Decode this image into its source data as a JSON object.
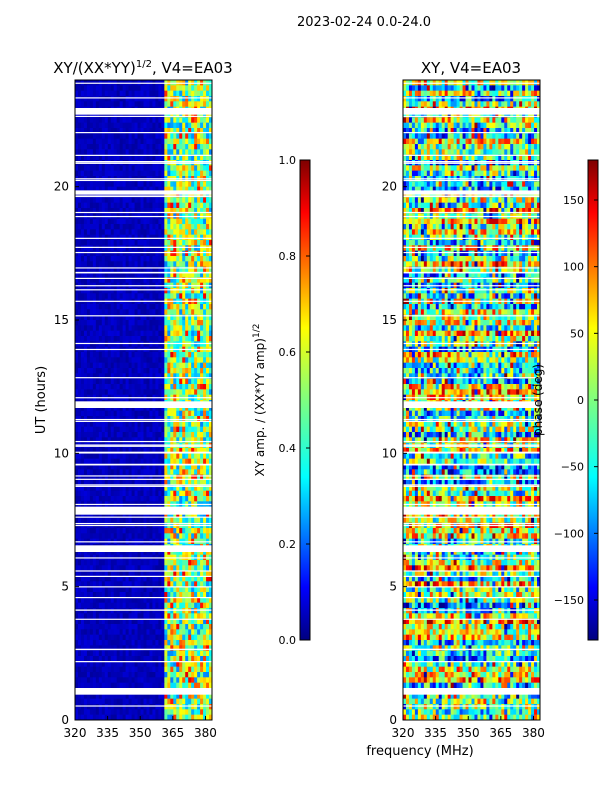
{
  "figure": {
    "suptitle": "2023-02-24 0.0-24.0",
    "xlabel_shared": "frequency (MHz)"
  },
  "chart_data": [
    {
      "type": "heatmap",
      "name": "amplitude-ratio",
      "title_main": "XY/(XX*YY)",
      "title_exp": "1/2",
      "title_tail": ", V4=EA03",
      "xlabel": "",
      "ylabel": "UT (hours)",
      "xlim": [
        320,
        383
      ],
      "ylim": [
        0,
        24
      ],
      "xticks": [
        320,
        335,
        350,
        365,
        380
      ],
      "yticks": [
        0,
        5,
        10,
        15,
        20
      ],
      "colorbar": {
        "label_main": "XY amp. / (XX*YY amp)",
        "label_exp": "1/2",
        "range": [
          0.0,
          1.0
        ],
        "ticks": [
          "0.0",
          "0.2",
          "0.4",
          "0.6",
          "0.8",
          "1.0"
        ]
      },
      "colormap": [
        "#00007f",
        "#0000ff",
        "#007fff",
        "#00ffff",
        "#7fff7f",
        "#ffff00",
        "#ff7f00",
        "#ff0000",
        "#7f0000"
      ]
    },
    {
      "type": "heatmap",
      "name": "phase",
      "title_main": "XY, V4=EA03",
      "xlabel": "frequency (MHz)",
      "ylabel": "",
      "xlim": [
        320,
        383
      ],
      "ylim": [
        0,
        24
      ],
      "xticks": [
        320,
        335,
        350,
        365,
        380
      ],
      "yticks": [
        0,
        5,
        10,
        15,
        20
      ],
      "colorbar": {
        "label_main": "phase (deg)",
        "range": [
          -180,
          180
        ],
        "ticks": [
          "−150",
          "−100",
          "−50",
          "0",
          "50",
          "100",
          "150"
        ]
      },
      "colormap": [
        "#00007f",
        "#0000ff",
        "#007fff",
        "#00ffff",
        "#7fff7f",
        "#ffff00",
        "#ff7f00",
        "#ff0000",
        "#7f0000"
      ]
    }
  ]
}
